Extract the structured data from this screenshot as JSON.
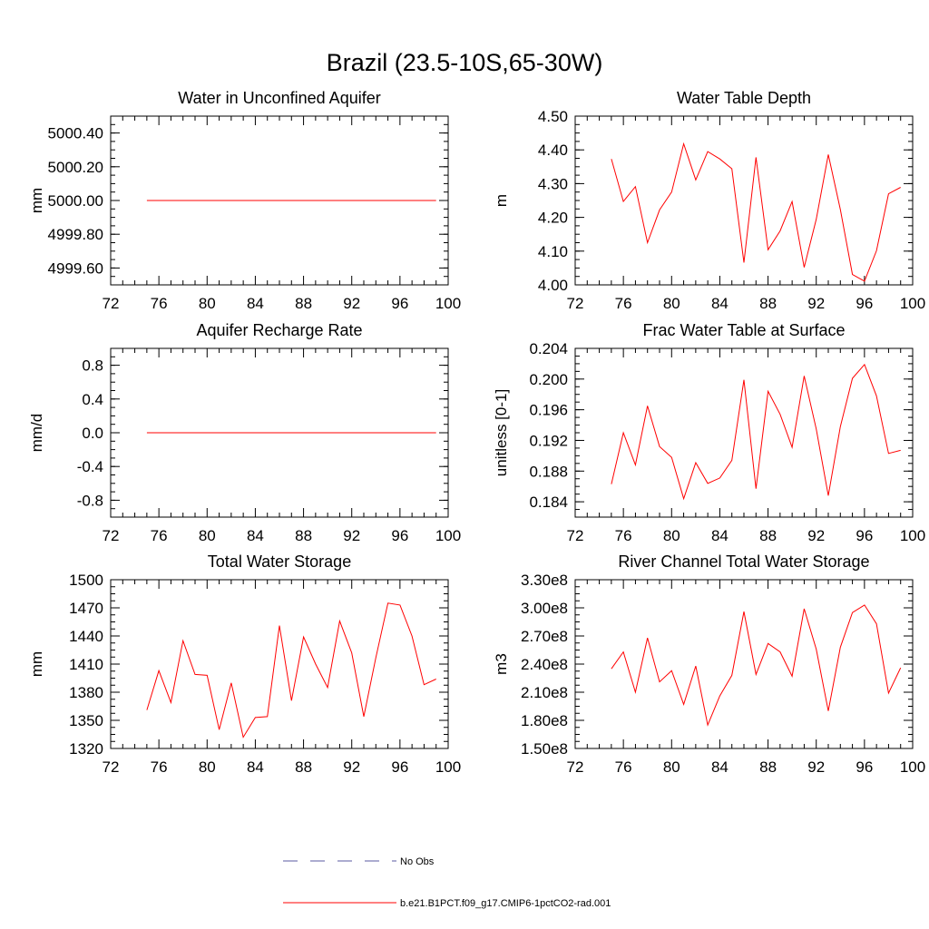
{
  "figure": {
    "title": "Brazil (23.5-10S,65-30W)"
  },
  "legend": {
    "items": [
      {
        "label": "No Obs",
        "color": "#5a5aa0",
        "style": "dashed"
      },
      {
        "label": "b.e21.B1PCT.f09_g17.CMIP6-1pctCO2-rad.001",
        "color": "#ff0000",
        "style": "solid"
      }
    ]
  },
  "chart_data": [
    {
      "type": "line",
      "title": "Water in Unconfined Aquifer",
      "ylabel": "mm",
      "xlabel": "",
      "xlim": [
        72,
        100
      ],
      "ylim": [
        4999.5,
        5000.5
      ],
      "xticks": [
        72,
        76,
        80,
        84,
        88,
        92,
        96,
        100
      ],
      "yticks": [
        4999.6,
        4999.8,
        5000.0,
        5000.2,
        5000.4
      ],
      "ytick_labels": [
        "4999.60",
        "4999.80",
        "5000.00",
        "5000.20",
        "5000.40"
      ],
      "series": [
        {
          "color": "#ff0000",
          "x": [
            75,
            76,
            77,
            78,
            79,
            80,
            81,
            82,
            83,
            84,
            85,
            86,
            87,
            88,
            89,
            90,
            91,
            92,
            93,
            94,
            95,
            96,
            97,
            98,
            99
          ],
          "y": [
            5000,
            5000,
            5000,
            5000,
            5000,
            5000,
            5000,
            5000,
            5000,
            5000,
            5000,
            5000,
            5000,
            5000,
            5000,
            5000,
            5000,
            5000,
            5000,
            5000,
            5000,
            5000,
            5000,
            5000,
            5000
          ]
        }
      ]
    },
    {
      "type": "line",
      "title": "Water Table Depth",
      "ylabel": "m",
      "xlabel": "",
      "xlim": [
        72,
        100
      ],
      "ylim": [
        4.0,
        4.5
      ],
      "xticks": [
        72,
        76,
        80,
        84,
        88,
        92,
        96,
        100
      ],
      "yticks": [
        4.0,
        4.1,
        4.2,
        4.3,
        4.4,
        4.5
      ],
      "ytick_labels": [
        "4.00",
        "4.10",
        "4.20",
        "4.30",
        "4.40",
        "4.50"
      ],
      "series": [
        {
          "color": "#ff0000",
          "x": [
            75,
            76,
            77,
            78,
            79,
            80,
            81,
            82,
            83,
            84,
            85,
            86,
            87,
            88,
            89,
            90,
            91,
            92,
            93,
            94,
            95,
            96,
            97,
            98,
            99
          ],
          "y": [
            4.373,
            4.247,
            4.291,
            4.125,
            4.222,
            4.275,
            4.418,
            4.311,
            4.395,
            4.373,
            4.344,
            4.066,
            4.378,
            4.104,
            4.16,
            4.247,
            4.052,
            4.194,
            4.386,
            4.223,
            4.031,
            4.011,
            4.101,
            4.27,
            4.289
          ]
        }
      ]
    },
    {
      "type": "line",
      "title": "Aquifer Recharge Rate",
      "ylabel": "mm/d",
      "xlabel": "",
      "xlim": [
        72,
        100
      ],
      "ylim": [
        -1.0,
        1.0
      ],
      "xticks": [
        72,
        76,
        80,
        84,
        88,
        92,
        96,
        100
      ],
      "yticks": [
        -0.8,
        -0.4,
        0.0,
        0.4,
        0.8
      ],
      "ytick_labels": [
        "-0.8",
        "-0.4",
        "0.0",
        "0.4",
        "0.8"
      ],
      "series": [
        {
          "color": "#ff0000",
          "x": [
            75,
            76,
            77,
            78,
            79,
            80,
            81,
            82,
            83,
            84,
            85,
            86,
            87,
            88,
            89,
            90,
            91,
            92,
            93,
            94,
            95,
            96,
            97,
            98,
            99
          ],
          "y": [
            0,
            0,
            0,
            0,
            0,
            0,
            0,
            0,
            0,
            0,
            0,
            0,
            0,
            0,
            0,
            0,
            0,
            0,
            0,
            0,
            0,
            0,
            0,
            0,
            0
          ]
        }
      ]
    },
    {
      "type": "line",
      "title": "Frac Water Table at Surface",
      "ylabel": "unitless [0-1]",
      "xlabel": "",
      "xlim": [
        72,
        100
      ],
      "ylim": [
        0.182,
        0.204
      ],
      "xticks": [
        72,
        76,
        80,
        84,
        88,
        92,
        96,
        100
      ],
      "yticks": [
        0.184,
        0.188,
        0.192,
        0.196,
        0.2,
        0.204
      ],
      "ytick_labels": [
        "0.184",
        "0.188",
        "0.192",
        "0.196",
        "0.200",
        "0.204"
      ],
      "series": [
        {
          "color": "#ff0000",
          "x": [
            75,
            76,
            77,
            78,
            79,
            80,
            81,
            82,
            83,
            84,
            85,
            86,
            87,
            88,
            89,
            90,
            91,
            92,
            93,
            94,
            95,
            96,
            97,
            98,
            99
          ],
          "y": [
            0.1863,
            0.193,
            0.1888,
            0.1965,
            0.1912,
            0.1898,
            0.1844,
            0.1891,
            0.1864,
            0.1871,
            0.1894,
            0.1999,
            0.1857,
            0.1984,
            0.1954,
            0.1911,
            0.2004,
            0.1935,
            0.1848,
            0.1938,
            0.2001,
            0.2019,
            0.1978,
            0.1903,
            0.1907
          ]
        }
      ]
    },
    {
      "type": "line",
      "title": "Total Water Storage",
      "ylabel": "mm",
      "xlabel": "",
      "xlim": [
        72,
        100
      ],
      "ylim": [
        1320,
        1500
      ],
      "xticks": [
        72,
        76,
        80,
        84,
        88,
        92,
        96,
        100
      ],
      "yticks": [
        1320,
        1350,
        1380,
        1410,
        1440,
        1470,
        1500
      ],
      "ytick_labels": [
        "1320",
        "1350",
        "1380",
        "1410",
        "1440",
        "1470",
        "1500"
      ],
      "series": [
        {
          "color": "#ff0000",
          "x": [
            75,
            76,
            77,
            78,
            79,
            80,
            81,
            82,
            83,
            84,
            85,
            86,
            87,
            88,
            89,
            90,
            91,
            92,
            93,
            94,
            95,
            96,
            97,
            98,
            99
          ],
          "y": [
            1361,
            1403,
            1369,
            1435,
            1399,
            1398,
            1340,
            1390,
            1332,
            1353,
            1354,
            1451,
            1371,
            1439,
            1410,
            1385,
            1456,
            1422,
            1354,
            1417,
            1475,
            1473,
            1440,
            1388,
            1394
          ]
        }
      ]
    },
    {
      "type": "line",
      "title": "River Channel Total Water Storage",
      "ylabel": "m3",
      "xlabel": "",
      "xlim": [
        72,
        100
      ],
      "ylim": [
        150000000,
        330000000
      ],
      "xticks": [
        72,
        76,
        80,
        84,
        88,
        92,
        96,
        100
      ],
      "yticks": [
        150000000,
        180000000,
        210000000,
        240000000,
        270000000,
        300000000,
        330000000
      ],
      "ytick_labels": [
        "1.50e8",
        "1.80e8",
        "2.10e8",
        "2.40e8",
        "2.70e8",
        "3.00e8",
        "3.30e8"
      ],
      "series": [
        {
          "color": "#ff0000",
          "x": [
            75,
            76,
            77,
            78,
            79,
            80,
            81,
            82,
            83,
            84,
            85,
            86,
            87,
            88,
            89,
            90,
            91,
            92,
            93,
            94,
            95,
            96,
            97,
            98,
            99
          ],
          "y": [
            235000000,
            253000000,
            210000000,
            268000000,
            221000000,
            233000000,
            197000000,
            238000000,
            175000000,
            206000000,
            228000000,
            296000000,
            229000000,
            262000000,
            253000000,
            227000000,
            299000000,
            256000000,
            190000000,
            258000000,
            295000000,
            303000000,
            283000000,
            209000000,
            236000000
          ]
        }
      ]
    }
  ]
}
